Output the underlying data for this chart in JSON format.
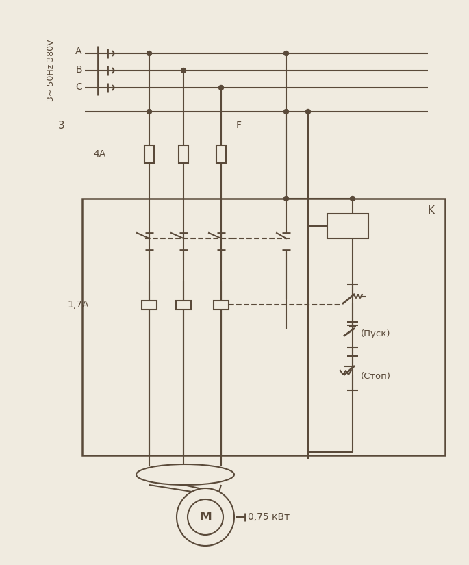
{
  "bg_color": "#f0ebe0",
  "line_color": "#5a4a3a",
  "text_color": "#5a4a3a",
  "label_phase": "3~ 50Hz 380V",
  "label_3": "3",
  "label_A": "A",
  "label_B": "B",
  "label_C": "C",
  "label_4A": "4A",
  "label_F": "F",
  "label_K": "K",
  "label_17A": "1,7A",
  "label_M": "M",
  "label_power": "0,75 кВт",
  "label_start": "(Пуск)",
  "label_stop": "(Стоп)"
}
